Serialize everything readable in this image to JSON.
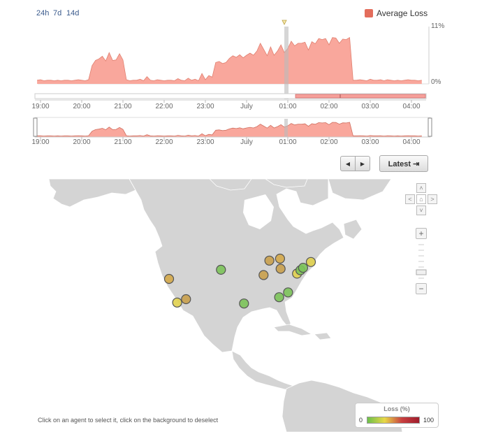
{
  "time_ranges": [
    "24h",
    "7d",
    "14d"
  ],
  "legend": {
    "label": "Average Loss",
    "color": "#e36d5c"
  },
  "y_axis": {
    "max_label": "11%",
    "min_label": "0%"
  },
  "time_ticks": [
    "19:00",
    "20:00",
    "21:00",
    "22:00",
    "23:00",
    "July",
    "01:00",
    "02:00",
    "03:00",
    "04:00"
  ],
  "buttons": {
    "latest": "Latest ⇥",
    "prev": "◀",
    "next": "▶"
  },
  "map_nav": {
    "up": "˄",
    "down": "˅",
    "left": "˂",
    "right": "˃",
    "home": "⌂",
    "zoom_in": "+",
    "zoom_out": "−"
  },
  "hint": "Click on an agent to select it, click on the background to deselect",
  "loss_legend": {
    "title": "Loss (%)",
    "min": "0",
    "max": "100"
  },
  "chart_data": {
    "type": "area",
    "series": [
      {
        "name": "Average Loss",
        "color": "#f9a79c"
      }
    ],
    "x": [
      "18:55",
      "19:00",
      "19:05",
      "19:10",
      "19:15",
      "19:20",
      "19:25",
      "19:30",
      "19:35",
      "19:40",
      "19:45",
      "19:50",
      "19:55",
      "20:00",
      "20:05",
      "20:10",
      "20:15",
      "20:20",
      "20:25",
      "20:30",
      "20:35",
      "20:40",
      "20:45",
      "20:50",
      "20:55",
      "21:00",
      "21:05",
      "21:10",
      "21:15",
      "21:20",
      "21:25",
      "21:30",
      "21:35",
      "21:40",
      "21:45",
      "21:50",
      "21:55",
      "22:00",
      "22:05",
      "22:10",
      "22:15",
      "22:20",
      "22:25",
      "22:30",
      "22:35",
      "22:40",
      "22:45",
      "22:50",
      "22:55",
      "23:00",
      "23:05",
      "23:10",
      "23:15",
      "23:20",
      "23:25",
      "23:30",
      "23:35",
      "23:40",
      "23:45",
      "23:50",
      "23:55",
      "00:00",
      "00:05",
      "00:10",
      "00:15",
      "00:20",
      "00:25",
      "00:30",
      "00:35",
      "00:40",
      "00:45",
      "00:50",
      "00:55",
      "01:00",
      "01:05",
      "01:10",
      "01:15",
      "01:20",
      "01:25",
      "01:30",
      "01:35",
      "01:40",
      "01:45",
      "01:50",
      "01:55",
      "02:00",
      "02:05",
      "02:10",
      "02:15",
      "02:20",
      "02:25",
      "02:30",
      "02:35",
      "02:40",
      "02:45",
      "02:50",
      "02:55",
      "03:00",
      "03:05",
      "03:10",
      "03:15",
      "03:20",
      "03:25",
      "03:30",
      "03:35",
      "03:40",
      "03:45",
      "03:50",
      "03:55",
      "04:00",
      "04:05",
      "04:10",
      "04:15"
    ],
    "values": [
      0.7,
      0.8,
      0.6,
      0.7,
      0.7,
      0.6,
      0.7,
      0.6,
      0.7,
      0.7,
      0.6,
      0.7,
      0.8,
      0.7,
      0.6,
      0.8,
      3.5,
      4.5,
      4.8,
      5.3,
      4.4,
      6.0,
      4.5,
      4.6,
      5.8,
      4.6,
      0.8,
      0.6,
      0.7,
      0.7,
      0.9,
      0.6,
      1.4,
      0.7,
      0.6,
      0.8,
      0.7,
      0.6,
      0.7,
      0.7,
      0.6,
      1.0,
      0.7,
      0.6,
      1.1,
      0.7,
      0.9,
      0.6,
      2.0,
      0.8,
      1.6,
      1.3,
      4.1,
      4.3,
      3.9,
      4.1,
      4.9,
      5.4,
      5.1,
      5.6,
      5.0,
      5.5,
      5.9,
      5.5,
      6.3,
      7.8,
      6.6,
      5.4,
      7.1,
      5.5,
      6.3,
      7.5,
      6.0,
      6.8,
      8.2,
      7.3,
      7.8,
      7.8,
      8.0,
      6.5,
      8.1,
      7.7,
      8.7,
      8.5,
      8.7,
      7.5,
      8.9,
      8.8,
      7.8,
      8.6,
      8.5,
      8.9,
      0.7,
      0.7,
      0.8,
      0.7,
      0.6,
      0.9,
      0.7,
      0.7,
      0.8,
      0.6,
      0.8,
      0.7,
      0.6,
      0.7,
      0.6,
      0.7,
      0.8,
      0.7,
      0.7,
      0.6,
      0.7
    ],
    "ylim": [
      0,
      11
    ],
    "ytick_labels": [
      "0%",
      "11%"
    ],
    "legend_position": "top-right"
  },
  "agents": [
    {
      "lon": -123.0,
      "lat": 37.8,
      "color": "#d4a84a"
    },
    {
      "lon": -120.2,
      "lat": 32.9,
      "color": "#e0d04e"
    },
    {
      "lon": -117.1,
      "lat": 33.6,
      "color": "#c9a04c"
    },
    {
      "lon": -105.0,
      "lat": 39.7,
      "color": "#7cc35a"
    },
    {
      "lon": -97.0,
      "lat": 32.7,
      "color": "#7cc35a"
    },
    {
      "lon": -90.2,
      "lat": 38.6,
      "color": "#c9a04c"
    },
    {
      "lon": -88.2,
      "lat": 41.6,
      "color": "#c9a04c"
    },
    {
      "lon": -84.5,
      "lat": 42.0,
      "color": "#d4a84a"
    },
    {
      "lon": -84.3,
      "lat": 39.9,
      "color": "#c9a04c"
    },
    {
      "lon": -84.8,
      "lat": 34.0,
      "color": "#7cc35a"
    },
    {
      "lon": -81.7,
      "lat": 35.0,
      "color": "#7cc35a"
    },
    {
      "lon": -78.6,
      "lat": 38.9,
      "color": "#e0d04e"
    },
    {
      "lon": -77.4,
      "lat": 39.6,
      "color": "#7cc35a"
    },
    {
      "lon": -76.5,
      "lat": 40.1,
      "color": "#7cc35a"
    },
    {
      "lon": -73.8,
      "lat": 41.3,
      "color": "#e0d04e"
    }
  ]
}
